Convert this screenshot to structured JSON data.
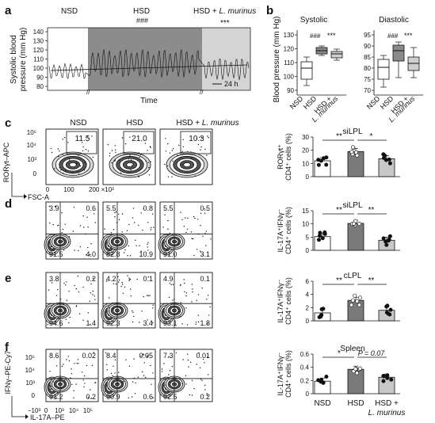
{
  "panels": {
    "a": {
      "letter": "a",
      "groups": [
        "NSD",
        "HSD",
        "HSD + L. murinus"
      ],
      "group_prefix": "HSD + ",
      "group_species": "L. murinus",
      "sig": [
        "###",
        "***"
      ],
      "ylabel_line1": "Systolic blood",
      "ylabel_line2": "pressure (mm Hg)",
      "yticks": [
        "140",
        "130",
        "120",
        "110",
        "100",
        "90",
        "80"
      ],
      "xlabel": "Time",
      "scalebar": "24 h",
      "colors": {
        "nsd": "#ffffff",
        "hsd": "#8c8c8c",
        "hsd_lm": "#d4d4d4"
      }
    },
    "b": {
      "letter": "b",
      "ylabel": "Blood pressure (mm Hg)",
      "systolic": {
        "title": "Systolic",
        "yticks": [
          "130",
          "120",
          "110",
          "100",
          "90"
        ],
        "sig": [
          "###",
          "***"
        ]
      },
      "diastolic": {
        "title": "Diastolic",
        "yticks": [
          "95",
          "90",
          "85",
          "80",
          "75",
          "70"
        ],
        "sig": [
          "###",
          "***"
        ]
      },
      "xcats": [
        "NSD",
        "HSD",
        "HSD +",
        "L. murinus"
      ]
    },
    "c": {
      "letter": "c",
      "headers": [
        "NSD",
        "HSD",
        "HSD + L. murinus"
      ],
      "header_prefix": "HSD + ",
      "header_species": "L. murinus",
      "values": [
        "11.5",
        "21.0",
        "10.3"
      ],
      "ylabel": "RORγt–APC",
      "xlabel": "FSC-A",
      "yticks": [
        "10⁵",
        "10⁴",
        "10³",
        "0"
      ],
      "xticks": [
        "0",
        "100",
        "200 ×10³"
      ]
    },
    "d": {
      "letter": "d",
      "quads": [
        [
          "3.9",
          "0.6",
          "91.5",
          "4.0"
        ],
        [
          "5.5",
          "0.8",
          "82.8",
          "10.9"
        ],
        [
          "5.5",
          "0.5",
          "91.0",
          "3.1"
        ]
      ]
    },
    "e": {
      "letter": "e",
      "quads": [
        [
          "3.8",
          "0.2",
          "94.6",
          "1.4"
        ],
        [
          "4.2",
          "0.1",
          "92.3",
          "3.4"
        ],
        [
          "4.9",
          "0.1",
          "93.1",
          "1.8"
        ]
      ]
    },
    "f": {
      "letter": "f",
      "quads": [
        [
          "8.6",
          "0.02",
          "91.2",
          "0.2"
        ],
        [
          "8.4",
          "0.05",
          "90.9",
          "0.6"
        ],
        [
          "7.3",
          "0.01",
          "92.5",
          "0.2"
        ]
      ],
      "ylabel": "IFNγ–PE-Cy7",
      "xlabel": "IL-17A–PE",
      "yticks": [
        "10⁵",
        "10⁴",
        "10³",
        "0"
      ],
      "xticks": [
        "−10³",
        "0",
        "10³",
        "10⁴",
        "10⁵"
      ]
    }
  },
  "bars": [
    {
      "title": "siLPL",
      "ylabel1": "RORγt⁺",
      "ylabel2": "CD4⁺ cells (%)",
      "yticks": [
        "30",
        "20",
        "10",
        "0"
      ],
      "ymax": 30,
      "means": [
        12,
        19,
        13.5
      ],
      "sig": [
        "**",
        "*"
      ]
    },
    {
      "title": "siLPL",
      "ylabel1": "IL-17A⁺IFNγ⁻",
      "ylabel2": "CD4⁺ cells (%)",
      "yticks": [
        "15",
        "10",
        "5",
        "0"
      ],
      "ymax": 15,
      "means": [
        5.2,
        10.2,
        3.8
      ],
      "sig": [
        "**",
        "**"
      ]
    },
    {
      "title": "cLPL",
      "ylabel1": "IL-17A⁺IFNγ⁻",
      "ylabel2": "CD4⁺ cells (%)",
      "yticks": [
        "6",
        "4",
        "2",
        "0"
      ],
      "ymax": 6,
      "means": [
        1.2,
        3.1,
        1.6
      ],
      "sig": [
        "**",
        "**"
      ]
    },
    {
      "title": "Spleen",
      "ylabel1": "IL-17A⁺IFNγ⁻",
      "ylabel2": "CD4⁺ cells (%)",
      "yticks": [
        "0.6",
        "0.4",
        "0.2",
        "0"
      ],
      "ymax": 0.6,
      "means": [
        0.19,
        0.37,
        0.25
      ],
      "sig": [
        "*",
        "P = 0.07"
      ]
    }
  ],
  "bar_xcats": [
    "NSD",
    "HSD",
    "HSD +",
    "L. murinus"
  ],
  "bar_colors": [
    "#ffffff",
    "#7a7a7a",
    "#c8c8c8"
  ]
}
